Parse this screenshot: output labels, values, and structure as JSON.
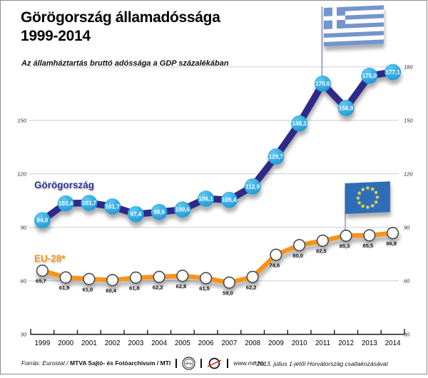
{
  "header": {
    "title_line1": "Görögország államadóssága",
    "title_line2": "1999-2014",
    "subtitle": "Az államháztartás bruttó adóssága a GDP százalékában"
  },
  "chart_data": {
    "type": "line",
    "title": "Görögország államadóssága 1999-2014",
    "subtitle": "Az államháztartás bruttó adóssága a GDP százalékában",
    "x": [
      1999,
      2000,
      2001,
      2002,
      2003,
      2004,
      2005,
      2006,
      2007,
      2008,
      2009,
      2010,
      2011,
      2012,
      2013,
      2014
    ],
    "series": [
      {
        "name": "Görögország",
        "name_color": "#2e3192",
        "line_color": "#2e2b87",
        "marker_fill": "#29a9e0",
        "value_label_color": "#ffffff",
        "values": [
          94.0,
          103.4,
          103.7,
          101.7,
          97.4,
          98.6,
          100.0,
          106.1,
          105.4,
          112.9,
          129.7,
          148.3,
          170.6,
          156.9,
          175.0,
          177.1
        ]
      },
      {
        "name": "EU-28*",
        "name_color": "#f7941d",
        "line_color": "#f7941e",
        "marker_fill": "#ffffff",
        "marker_stroke": "#4b4b4b",
        "value_label_color": "#111111",
        "values": [
          65.7,
          61.9,
          61.0,
          60.4,
          61.8,
          62.2,
          62.8,
          61.5,
          59.0,
          62.2,
          74.6,
          80.0,
          82.5,
          85.3,
          85.5,
          86.8
        ]
      }
    ],
    "ylim": [
      30,
      180
    ],
    "yticks_right": [
      180,
      150,
      120,
      90,
      60,
      30
    ],
    "yticks_left": [
      150,
      120,
      90,
      60,
      30
    ],
    "grid": true,
    "legend_position": "inline-series-labels",
    "flag_anchors": {
      "greece_flag_year": 2011,
      "eu_flag_year": 2012
    },
    "colors": {
      "greek_flag_blue": "#7394cd",
      "eu_flag_blue": "#2f6db8",
      "eu_star_yellow": "#f0e43b",
      "pole": "#aab6d2",
      "gridline": "#c9cedb"
    }
  },
  "footer": {
    "source_prefix": "Forrás: Eurostat /",
    "source_bold": "MTVA Sajtó- és Fotóarchivum / MTI",
    "mtva_logo_text": "MTVA",
    "website": "www.mti.hu",
    "footnote": "*2013. július 1-jétől Horvátország csatlakozásával"
  }
}
